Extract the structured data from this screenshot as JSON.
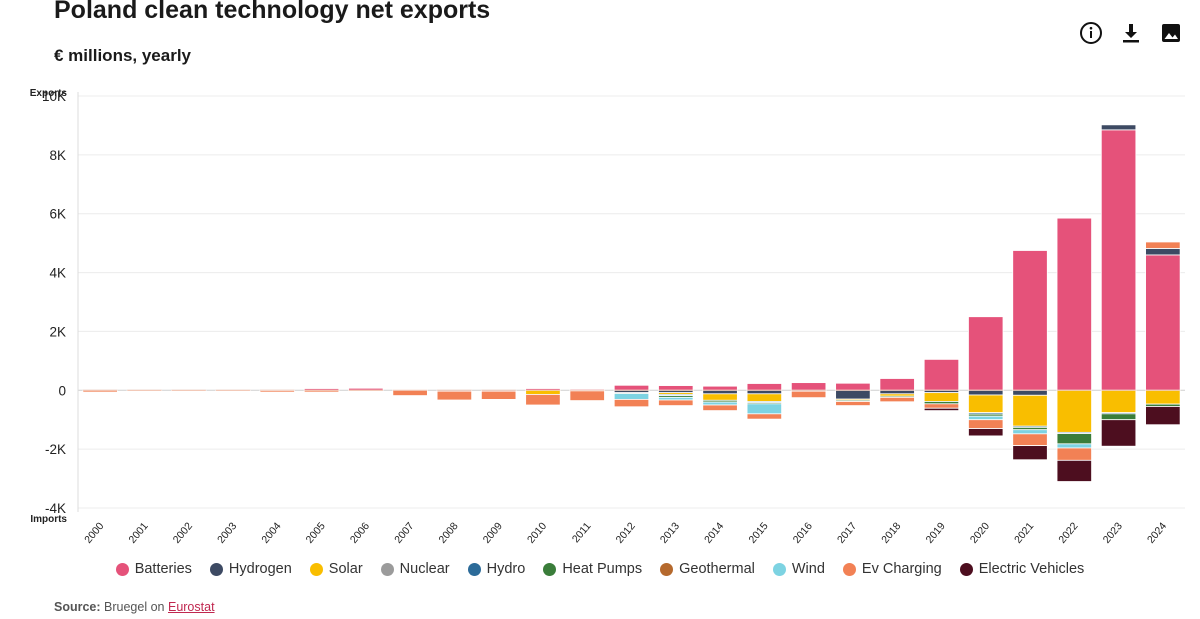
{
  "header": {
    "title": "Poland clean technology net exports",
    "subtitle": "€ millions, yearly"
  },
  "toolbar": {
    "info_icon": "info-icon",
    "download_icon": "download-icon",
    "image_icon": "image-icon"
  },
  "source": {
    "label": "Source:",
    "text": "Bruegel on",
    "link": "Eurostat"
  },
  "chart_data": {
    "type": "bar",
    "stacked": true,
    "title": "Poland clean technology net exports",
    "subtitle": "€ millions, yearly",
    "ylabel_top": "Exports",
    "ylabel_bottom": "Imports",
    "ylim": [
      -4000,
      10000
    ],
    "yticks": [
      -4000,
      -2000,
      0,
      2000,
      4000,
      6000,
      8000,
      10000
    ],
    "ytick_labels": [
      "-4K",
      "-2K",
      "0",
      "2K",
      "4K",
      "6K",
      "8K",
      "10K"
    ],
    "grid": true,
    "legend_position": "bottom",
    "categories": [
      "2000",
      "2001",
      "2002",
      "2003",
      "2004",
      "2005",
      "2006",
      "2007",
      "2008",
      "2009",
      "2010",
      "2011",
      "2012",
      "2013",
      "2014",
      "2015",
      "2016",
      "2017",
      "2018",
      "2019",
      "2020",
      "2021",
      "2022",
      "2023",
      "2024"
    ],
    "series": [
      {
        "name": "Batteries",
        "color": "#e5527a",
        "values": [
          0,
          0,
          0,
          0,
          0,
          60,
          70,
          20,
          0,
          0,
          60,
          40,
          170,
          160,
          140,
          230,
          260,
          240,
          400,
          1050,
          2500,
          4750,
          5850,
          8850,
          4600
        ]
      },
      {
        "name": "Hydrogen",
        "color": "#3d4a63",
        "values": [
          0,
          0,
          0,
          0,
          -20,
          0,
          0,
          0,
          -30,
          -30,
          0,
          0,
          -80,
          -80,
          -120,
          -120,
          -30,
          -300,
          -120,
          -80,
          -160,
          -170,
          0,
          170,
          220
        ]
      },
      {
        "name": "Solar",
        "color": "#f9be00",
        "values": [
          0,
          0,
          0,
          0,
          0,
          0,
          0,
          0,
          0,
          0,
          -140,
          0,
          0,
          -60,
          -220,
          -260,
          0,
          -40,
          -80,
          -300,
          -600,
          -1050,
          -1430,
          -760,
          -470
        ]
      },
      {
        "name": "Nuclear",
        "color": "#9b9b9b",
        "values": [
          0,
          0,
          0,
          0,
          0,
          0,
          0,
          0,
          0,
          0,
          0,
          0,
          0,
          0,
          0,
          0,
          0,
          0,
          0,
          0,
          0,
          0,
          0,
          0,
          0
        ]
      },
      {
        "name": "Hydro",
        "color": "#2c6b99",
        "values": [
          0,
          0,
          0,
          0,
          0,
          0,
          0,
          0,
          0,
          0,
          0,
          0,
          0,
          -40,
          0,
          -40,
          0,
          0,
          0,
          0,
          -50,
          -40,
          -40,
          -40,
          0
        ]
      },
      {
        "name": "Heat Pumps",
        "color": "#3a7d3a",
        "values": [
          0,
          0,
          0,
          0,
          0,
          0,
          0,
          0,
          0,
          0,
          0,
          0,
          -30,
          -60,
          -60,
          -40,
          0,
          -40,
          -40,
          -80,
          -70,
          -80,
          -350,
          -200,
          -80
        ]
      },
      {
        "name": "Geothermal",
        "color": "#b5692d",
        "values": [
          0,
          0,
          0,
          0,
          0,
          0,
          0,
          0,
          0,
          0,
          0,
          -20,
          0,
          0,
          0,
          0,
          0,
          0,
          0,
          0,
          0,
          0,
          0,
          0,
          0
        ]
      },
      {
        "name": "Wind",
        "color": "#7dd3e2",
        "values": [
          0,
          0,
          0,
          0,
          0,
          0,
          0,
          0,
          0,
          0,
          0,
          0,
          -200,
          -90,
          -100,
          -340,
          0,
          0,
          0,
          0,
          -120,
          -140,
          -140,
          0,
          0
        ]
      },
      {
        "name": "Ev Charging",
        "color": "#f28155",
        "values": [
          -60,
          -20,
          -20,
          -20,
          -50,
          -60,
          -20,
          -180,
          -300,
          -280,
          -360,
          -330,
          -250,
          -190,
          -190,
          -180,
          -220,
          -140,
          -150,
          -150,
          -300,
          -400,
          -420,
          0,
          220
        ]
      },
      {
        "name": "Electric Vehicles",
        "color": "#4d0e1f",
        "values": [
          0,
          0,
          0,
          0,
          0,
          0,
          0,
          0,
          0,
          0,
          0,
          0,
          0,
          0,
          0,
          0,
          0,
          0,
          0,
          -80,
          -250,
          -480,
          -720,
          -900,
          -620
        ]
      }
    ]
  }
}
